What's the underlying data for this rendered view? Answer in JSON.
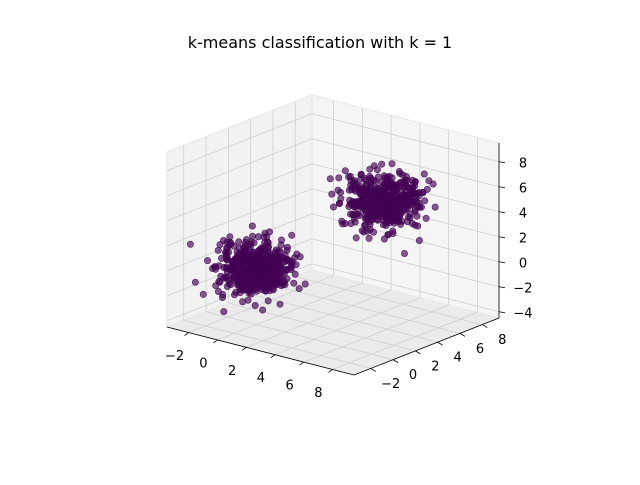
{
  "chart_data": {
    "type": "scatter",
    "title": "k-means classification with k = 1",
    "xlabel": "",
    "ylabel": "",
    "zlabel": "",
    "x_ticks": [
      -2,
      0,
      2,
      4,
      6,
      8
    ],
    "y_ticks": [
      -2,
      0,
      2,
      4,
      6,
      8
    ],
    "z_ticks": [
      -4,
      -2,
      0,
      2,
      4,
      6,
      8
    ],
    "xlim": [
      -3.5,
      9.5
    ],
    "ylim": [
      -3.5,
      9.5
    ],
    "zlim": [
      -4.5,
      9.5
    ],
    "grid": true,
    "projection": "3d",
    "marker_color": "#440154",
    "clusters": [
      {
        "center": [
          0,
          0,
          0
        ],
        "spread": 1,
        "count": 500
      },
      {
        "center": [
          5,
          5,
          5
        ],
        "spread": 1,
        "count": 500
      }
    ]
  }
}
